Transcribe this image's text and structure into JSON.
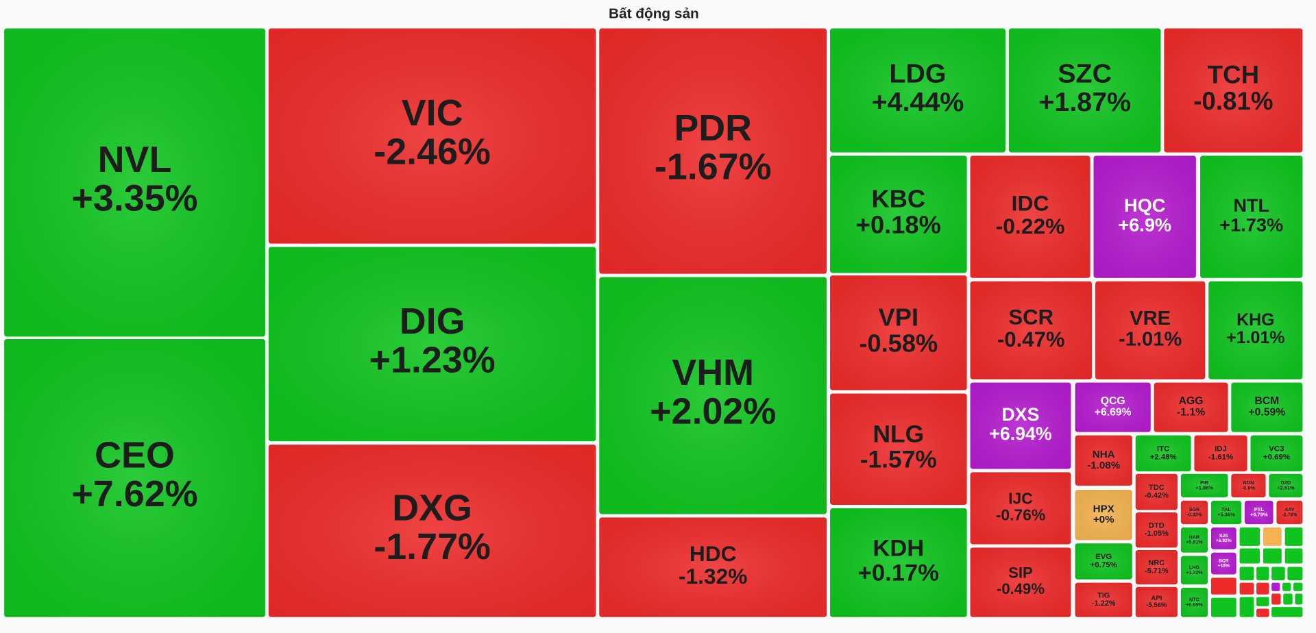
{
  "chart_data": {
    "type": "treemap",
    "title": "Bất động sản",
    "categories": [
      "NVL",
      "CEO",
      "VIC",
      "DIG",
      "DXG",
      "PDR",
      "VHM",
      "HDC",
      "LDG",
      "SZC",
      "TCH",
      "KBC",
      "IDC",
      "HQC",
      "NTL",
      "VPI",
      "SCR",
      "VRE",
      "KHG",
      "NLG",
      "KDH",
      "DXS",
      "QCG",
      "AGG",
      "BCM",
      "IJC",
      "SIP",
      "NHA",
      "HPX",
      "EVG",
      "TIG",
      "ITC",
      "IDJ",
      "VC3",
      "TDC",
      "DTD",
      "NRC",
      "API",
      "FIR",
      "NDN",
      "D2D",
      "SGR",
      "TAL",
      "PTL",
      "AAV",
      "HAR",
      "SJS",
      "LHG",
      "BCR",
      "NTC"
    ],
    "values": [
      3.35,
      7.62,
      -2.46,
      1.23,
      -1.77,
      -1.67,
      2.02,
      -1.32,
      4.44,
      1.87,
      -0.81,
      0.18,
      -0.22,
      6.9,
      1.73,
      -0.58,
      -0.47,
      -1.01,
      1.01,
      -1.57,
      0.17,
      6.94,
      6.69,
      -1.1,
      0.59,
      -0.76,
      -0.49,
      -1.08,
      0,
      0.75,
      -1.22,
      2.48,
      -1.61,
      0.69,
      -0.42,
      -1.05,
      -5.71,
      -5.56,
      1.86,
      -0.9,
      2.51,
      -0.33,
      5.36,
      6.79,
      -2.78,
      5.81,
      6.92,
      1.32,
      15,
      0.85
    ],
    "value_labels": [
      "+3.35%",
      "+7.62%",
      "-2.46%",
      "+1.23%",
      "-1.77%",
      "-1.67%",
      "+2.02%",
      "-1.32%",
      "+4.44%",
      "+1.87%",
      "-0.81%",
      "+0.18%",
      "-0.22%",
      "+6.9%",
      "+1.73%",
      "-0.58%",
      "-0.47%",
      "-1.01%",
      "+1.01%",
      "-1.57%",
      "+0.17%",
      "+6.94%",
      "+6.69%",
      "-1.1%",
      "+0.59%",
      "-0.76%",
      "-0.49%",
      "-1.08%",
      "+0%",
      "+0.75%",
      "-1.22%",
      "+2.48%",
      "-1.61%",
      "+0.69%",
      "-0.42%",
      "-1.05%",
      "-5.71%",
      "-5.56%",
      "+1.86%",
      "-0.9%",
      "+2.51%",
      "-0.33%",
      "+5.36%",
      "+6.79%",
      "-2.78%",
      "+5.81%",
      "+6.92%",
      "+1.32%",
      "+15%",
      "+0.85%"
    ],
    "colors": [
      "#0fc41f",
      "#0fc41f",
      "#ee2b2b",
      "#0fc41f",
      "#ee2b2b",
      "#ee2b2b",
      "#0fc41f",
      "#ee2b2b",
      "#0fc41f",
      "#0fc41f",
      "#ee2b2b",
      "#0fc41f",
      "#ee2b2b",
      "#b51ccf",
      "#0fc41f",
      "#ee2b2b",
      "#ee2b2b",
      "#ee2b2b",
      "#0fc41f",
      "#ee2b2b",
      "#0fc41f",
      "#b51ccf",
      "#b51ccf",
      "#ee2b2b",
      "#0fc41f",
      "#ee2b2b",
      "#ee2b2b",
      "#ee2b2b",
      "#f4b350",
      "#0fc41f",
      "#ee2b2b",
      "#0fc41f",
      "#ee2b2b",
      "#0fc41f",
      "#ee2b2b",
      "#ee2b2b",
      "#ee2b2b",
      "#ee2b2b",
      "#0fc41f",
      "#ee2b2b",
      "#0fc41f",
      "#ee2b2b",
      "#0fc41f",
      "#b51ccf",
      "#ee2b2b",
      "#0fc41f",
      "#b51ccf",
      "#0fc41f",
      "#b51ccf",
      "#0fc41f"
    ]
  }
}
